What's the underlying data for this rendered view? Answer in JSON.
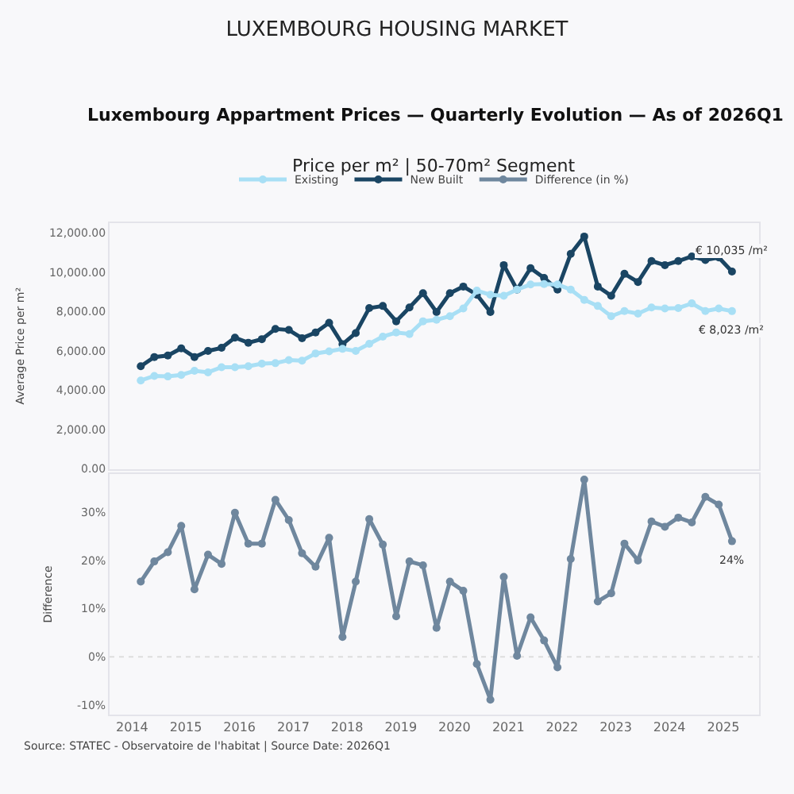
{
  "chart_data": [
    {
      "type": "line",
      "title": "LUXEMBOURG HOUSING MARKET",
      "subtitle": "Luxembourg Appartment Prices — Quarterly Evolution — As of 2026Q1",
      "annotations": [
        "Price per m² | 50-70m² Segment"
      ],
      "ylabel": "Average Price per m²",
      "x": [
        "2014-03",
        "2014-06",
        "2014-09",
        "2014-12",
        "2015-03",
        "2015-06",
        "2015-09",
        "2015-12",
        "2016-03",
        "2016-06",
        "2016-09",
        "2016-12",
        "2017-03",
        "2017-06",
        "2017-09",
        "2017-12",
        "2018-03",
        "2018-06",
        "2018-09",
        "2018-12",
        "2019-03",
        "2019-06",
        "2019-09",
        "2019-12",
        "2020-03",
        "2020-06",
        "2020-09",
        "2020-12",
        "2021-03",
        "2021-06",
        "2021-09",
        "2021-12",
        "2022-03",
        "2022-06",
        "2022-09",
        "2022-12",
        "2023-03",
        "2023-06",
        "2023-09",
        "2023-12",
        "2024-03",
        "2024-06",
        "2024-09",
        "2024-12",
        "2025-03"
      ],
      "series": [
        {
          "name": "Existing",
          "color": "#a8dff5",
          "values": [
            4494,
            4727,
            4701,
            4779,
            4987,
            4909,
            5169,
            5169,
            5221,
            5351,
            5377,
            5532,
            5506,
            5870,
            5974,
            6104,
            6000,
            6364,
            6727,
            6935,
            6857,
            7506,
            7584,
            7766,
            8156,
            9065,
            8857,
            8805,
            9117,
            9377,
            9403,
            9377,
            9117,
            8597,
            8286,
            7766,
            8026,
            7896,
            8208,
            8156,
            8182,
            8416,
            8026,
            8156,
            8023
          ],
          "value_labels": [
            null,
            null,
            null,
            null,
            null,
            null,
            null,
            null,
            null,
            null,
            null,
            null,
            null,
            null,
            null,
            null,
            null,
            null,
            null,
            null,
            null,
            null,
            null,
            null,
            null,
            null,
            null,
            null,
            null,
            null,
            null,
            null,
            null,
            null,
            null,
            null,
            null,
            null,
            null,
            null,
            null,
            null,
            null,
            null,
            "€ 8,023 /m²"
          ]
        },
        {
          "name": "New Built",
          "color": "#1a4563",
          "values": [
            5221,
            5688,
            5766,
            6130,
            5688,
            6000,
            6156,
            6675,
            6416,
            6597,
            7117,
            7065,
            6649,
            6935,
            7429,
            6338,
            6909,
            8182,
            8286,
            7506,
            8208,
            8935,
            7974,
            8935,
            9273,
            8857,
            7974,
            10364,
            9117,
            10208,
            9714,
            9117,
            10935,
            11818,
            9273,
            8805,
            9922,
            9506,
            10571,
            10364,
            10571,
            10805,
            10623,
            10753,
            10035
          ],
          "value_labels": [
            null,
            null,
            null,
            null,
            null,
            null,
            null,
            null,
            null,
            null,
            null,
            null,
            null,
            null,
            null,
            null,
            null,
            null,
            null,
            null,
            null,
            null,
            null,
            null,
            null,
            null,
            null,
            null,
            null,
            null,
            null,
            null,
            null,
            null,
            null,
            null,
            null,
            null,
            null,
            null,
            null,
            null,
            null,
            null,
            "€ 10,035 /m²"
          ]
        }
      ],
      "xlim": [
        "2013-08",
        "2025-09"
      ],
      "xticks": [
        "2014",
        "2015",
        "2016",
        "2017",
        "2018",
        "2019",
        "2020",
        "2021",
        "2022",
        "2023",
        "2024",
        "2025"
      ],
      "ylim": [
        0,
        12500
      ],
      "yticks": [
        {
          "value": 0,
          "label": "0.00"
        },
        {
          "value": 2000,
          "label": "2,000.00"
        },
        {
          "value": 4000,
          "label": "4,000.00"
        },
        {
          "value": 6000,
          "label": "6,000.00"
        },
        {
          "value": 8000,
          "label": "8,000.00"
        },
        {
          "value": 10000,
          "label": "10,000.00"
        },
        {
          "value": 12000,
          "label": "12,000.00"
        }
      ],
      "tick_labels": "y",
      "grid": false,
      "legend": "top",
      "marker": "circle",
      "line_style": "solid"
    },
    {
      "type": "line",
      "ylabel": "Difference",
      "annotations": [
        "Source: STATEC - Observatoire de l'habitat | Source Date: 2026Q1"
      ],
      "x": [
        "2014-03",
        "2014-06",
        "2014-09",
        "2014-12",
        "2015-03",
        "2015-06",
        "2015-09",
        "2015-12",
        "2016-03",
        "2016-06",
        "2016-09",
        "2016-12",
        "2017-03",
        "2017-06",
        "2017-09",
        "2017-12",
        "2018-03",
        "2018-06",
        "2018-09",
        "2018-12",
        "2019-03",
        "2019-06",
        "2019-09",
        "2019-12",
        "2020-03",
        "2020-06",
        "2020-09",
        "2020-12",
        "2021-03",
        "2021-06",
        "2021-09",
        "2021-12",
        "2022-03",
        "2022-06",
        "2022-09",
        "2022-12",
        "2023-03",
        "2023-06",
        "2023-09",
        "2023-12",
        "2024-03",
        "2024-06",
        "2024-09",
        "2024-12",
        "2025-03"
      ],
      "series": [
        {
          "name": "Difference (in %)",
          "color": "#6f879e",
          "values": [
            15.6,
            19.8,
            21.7,
            27.2,
            14.0,
            21.2,
            19.3,
            29.9,
            23.5,
            23.5,
            32.6,
            28.4,
            21.5,
            18.7,
            24.7,
            4.1,
            15.6,
            28.6,
            23.3,
            8.4,
            19.8,
            19.0,
            6.0,
            15.6,
            13.7,
            -1.5,
            -8.9,
            16.6,
            0.2,
            8.2,
            3.4,
            -2.2,
            20.3,
            36.8,
            11.5,
            13.2,
            23.5,
            20.0,
            28.1,
            27.0,
            28.9,
            27.9,
            33.2,
            31.6,
            24
          ],
          "value_labels": [
            null,
            null,
            null,
            null,
            null,
            null,
            null,
            null,
            null,
            null,
            null,
            null,
            null,
            null,
            null,
            null,
            null,
            null,
            null,
            null,
            null,
            null,
            null,
            null,
            null,
            null,
            null,
            null,
            null,
            null,
            null,
            null,
            null,
            null,
            null,
            null,
            null,
            null,
            null,
            null,
            null,
            null,
            null,
            null,
            "24%"
          ]
        }
      ],
      "xlim": [
        "2013-08",
        "2025-09"
      ],
      "xticks": [
        "2014",
        "2015",
        "2016",
        "2017",
        "2018",
        "2019",
        "2020",
        "2021",
        "2022",
        "2023",
        "2024",
        "2025"
      ],
      "ylim": [
        -12,
        38
      ],
      "yticks": [
        {
          "value": -10,
          "label": "-10%"
        },
        {
          "value": 0,
          "label": "0%"
        },
        {
          "value": 10,
          "label": "10%"
        },
        {
          "value": 20,
          "label": "20%"
        },
        {
          "value": 30,
          "label": "30%"
        }
      ],
      "ref_lines": [
        {
          "axis": "y",
          "value": 0,
          "color": "#dddddd",
          "line_style": "dotted"
        }
      ],
      "grid": false,
      "legend": "top",
      "marker": "circle",
      "line_style": "solid"
    }
  ]
}
